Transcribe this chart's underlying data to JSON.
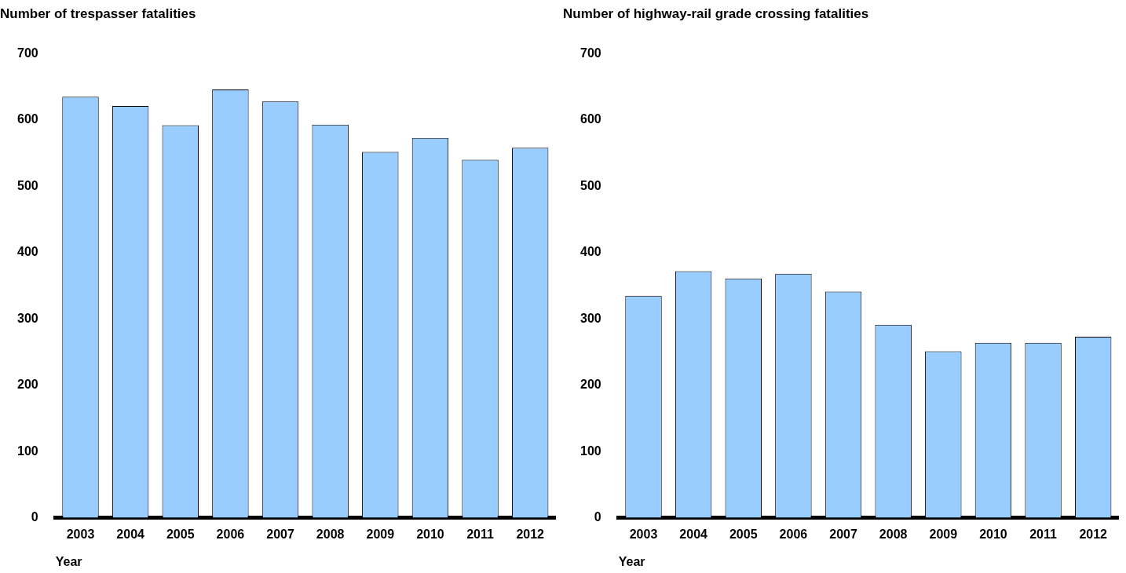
{
  "chart_data": [
    {
      "type": "bar",
      "title": "Number of trespasser fatalities",
      "xlabel": "Year",
      "categories": [
        "2003",
        "2004",
        "2005",
        "2006",
        "2007",
        "2008",
        "2009",
        "2010",
        "2011",
        "2012"
      ],
      "series": [
        {
          "color": "#99ccff",
          "values": [
            635,
            621,
            592,
            646,
            628,
            593,
            552,
            573,
            540,
            558
          ]
        }
      ],
      "ylim": [
        0,
        700
      ],
      "yticks": [
        0,
        100,
        200,
        300,
        400,
        500,
        600,
        700
      ],
      "grid": false,
      "legend": false
    },
    {
      "type": "bar",
      "title": "Number of highway-rail grade crossing fatalities",
      "xlabel": "Year",
      "categories": [
        "2003",
        "2004",
        "2005",
        "2006",
        "2007",
        "2008",
        "2009",
        "2010",
        "2011",
        "2012"
      ],
      "series": [
        {
          "color": "#99ccff",
          "values": [
            335,
            372,
            361,
            368,
            341,
            291,
            251,
            264,
            264,
            273
          ]
        }
      ],
      "ylim": [
        0,
        700
      ],
      "yticks": [
        0,
        100,
        200,
        300,
        400,
        500,
        600,
        700
      ],
      "grid": false,
      "legend": false
    }
  ]
}
